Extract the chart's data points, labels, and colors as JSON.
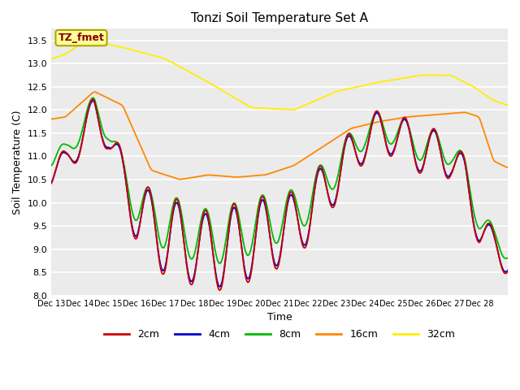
{
  "title": "Tonzi Soil Temperature Set A",
  "ylabel": "Soil Temperature (C)",
  "xlabel": "Time",
  "ylim": [
    8.0,
    13.75
  ],
  "yticks": [
    8.0,
    8.5,
    9.0,
    9.5,
    10.0,
    10.5,
    11.0,
    11.5,
    12.0,
    12.5,
    13.0,
    13.5
  ],
  "xtick_labels": [
    "Dec 13",
    "Dec 14",
    "Dec 15",
    "Dec 16",
    "Dec 17",
    "Dec 18",
    "Dec 19",
    "Dec 20",
    "Dec 21",
    "Dec 22",
    "Dec 23",
    "Dec 24",
    "Dec 25",
    "Dec 26",
    "Dec 27",
    "Dec 28"
  ],
  "colors": {
    "2cm": "#cc0000",
    "4cm": "#0000cc",
    "8cm": "#00bb00",
    "16cm": "#ff8800",
    "32cm": "#ffee00"
  },
  "annotation_text": "TZ_fmet",
  "annotation_color": "#880000",
  "annotation_bg": "#ffff99",
  "annotation_edge": "#aaaa00"
}
